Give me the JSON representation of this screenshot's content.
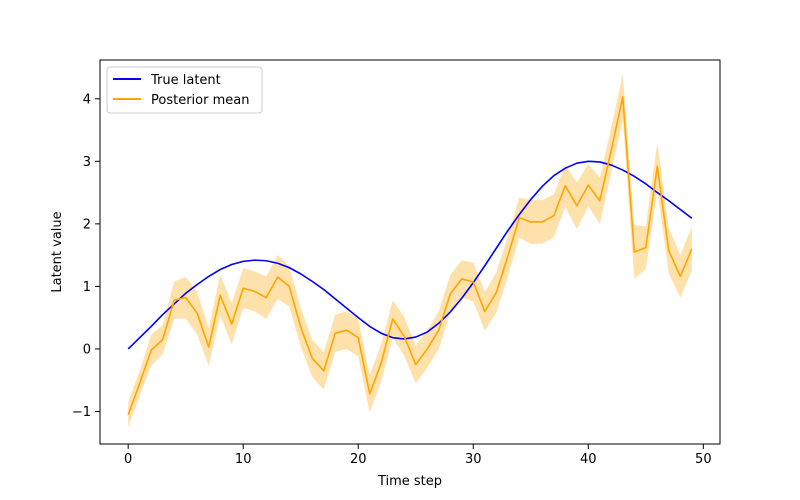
{
  "chart_data": {
    "type": "line",
    "title": "",
    "xlabel": "Time step",
    "ylabel": "Latent value",
    "xlim": [
      -2.45,
      51.45
    ],
    "ylim": [
      -1.52,
      4.62
    ],
    "xticks": [
      0,
      10,
      20,
      30,
      40,
      50
    ],
    "yticks": [
      -1,
      0,
      1,
      2,
      3,
      4
    ],
    "xtick_labels": [
      "0",
      "10",
      "20",
      "30",
      "40",
      "50"
    ],
    "ytick_labels": [
      "−1",
      "0",
      "1",
      "2",
      "3",
      "4"
    ],
    "grid": false,
    "legend_position": "top-left",
    "series": [
      {
        "name": "True latent",
        "color": "#0000ff",
        "x": [
          0,
          1,
          2,
          3,
          4,
          5,
          6,
          7,
          8,
          9,
          10,
          11,
          12,
          13,
          14,
          15,
          16,
          17,
          18,
          19,
          20,
          21,
          22,
          23,
          24,
          25,
          26,
          27,
          28,
          29,
          30,
          31,
          32,
          33,
          34,
          35,
          36,
          37,
          38,
          39,
          40,
          41,
          42,
          43,
          44,
          45,
          46,
          47,
          48,
          49
        ],
        "values": [
          0.0,
          0.18,
          0.36,
          0.55,
          0.72,
          0.89,
          1.03,
          1.16,
          1.27,
          1.35,
          1.4,
          1.42,
          1.41,
          1.37,
          1.3,
          1.2,
          1.08,
          0.95,
          0.8,
          0.65,
          0.5,
          0.36,
          0.25,
          0.18,
          0.16,
          0.19,
          0.27,
          0.41,
          0.59,
          0.81,
          1.06,
          1.33,
          1.61,
          1.89,
          2.15,
          2.39,
          2.6,
          2.77,
          2.89,
          2.97,
          3.0,
          2.99,
          2.94,
          2.86,
          2.76,
          2.64,
          2.5,
          2.37,
          2.23,
          2.09
        ]
      },
      {
        "name": "Posterior mean",
        "color": "#ffa500",
        "band_color": "#ffa500",
        "band_opacity": 0.33,
        "x": [
          0,
          1,
          2,
          3,
          4,
          5,
          6,
          7,
          8,
          9,
          10,
          11,
          12,
          13,
          14,
          15,
          16,
          17,
          18,
          19,
          20,
          21,
          22,
          23,
          24,
          25,
          26,
          27,
          28,
          29,
          30,
          31,
          32,
          33,
          34,
          35,
          36,
          37,
          38,
          39,
          40,
          41,
          42,
          43,
          44,
          45,
          46,
          47,
          48,
          49
        ],
        "values": [
          -1.05,
          -0.55,
          -0.02,
          0.15,
          0.78,
          0.82,
          0.57,
          0.03,
          0.86,
          0.4,
          0.97,
          0.92,
          0.82,
          1.15,
          1.0,
          0.35,
          -0.15,
          -0.35,
          0.25,
          0.3,
          0.18,
          -0.72,
          -0.22,
          0.48,
          0.2,
          -0.25,
          0.0,
          0.3,
          0.88,
          1.12,
          1.07,
          0.6,
          0.9,
          1.48,
          2.1,
          2.03,
          2.03,
          2.13,
          2.61,
          2.29,
          2.62,
          2.37,
          3.18,
          4.03,
          1.55,
          1.62,
          2.92,
          1.57,
          1.16,
          1.6
        ],
        "lower": [
          -1.25,
          -0.75,
          -0.27,
          -0.08,
          0.48,
          0.49,
          0.23,
          -0.27,
          0.53,
          0.07,
          0.65,
          0.6,
          0.48,
          0.8,
          0.68,
          0.04,
          -0.45,
          -0.65,
          -0.05,
          0.0,
          -0.12,
          -1.02,
          -0.52,
          0.18,
          -0.11,
          -0.55,
          -0.3,
          0.0,
          0.58,
          0.82,
          0.76,
          0.29,
          0.58,
          1.16,
          1.78,
          1.68,
          1.68,
          1.79,
          2.27,
          1.92,
          2.28,
          2.0,
          2.82,
          3.66,
          1.12,
          1.28,
          2.54,
          1.2,
          0.82,
          1.25
        ],
        "upper": [
          -0.85,
          -0.35,
          0.23,
          0.38,
          1.08,
          1.15,
          0.91,
          0.33,
          1.19,
          0.73,
          1.29,
          1.24,
          1.16,
          1.5,
          1.32,
          0.66,
          0.15,
          -0.05,
          0.55,
          0.6,
          0.48,
          -0.42,
          0.08,
          0.78,
          0.51,
          0.05,
          0.3,
          0.6,
          1.18,
          1.42,
          1.38,
          0.91,
          1.22,
          1.8,
          2.42,
          2.38,
          2.38,
          2.47,
          2.95,
          2.66,
          2.96,
          2.74,
          3.54,
          4.4,
          1.98,
          1.96,
          3.3,
          1.94,
          1.5,
          1.95
        ]
      }
    ]
  }
}
